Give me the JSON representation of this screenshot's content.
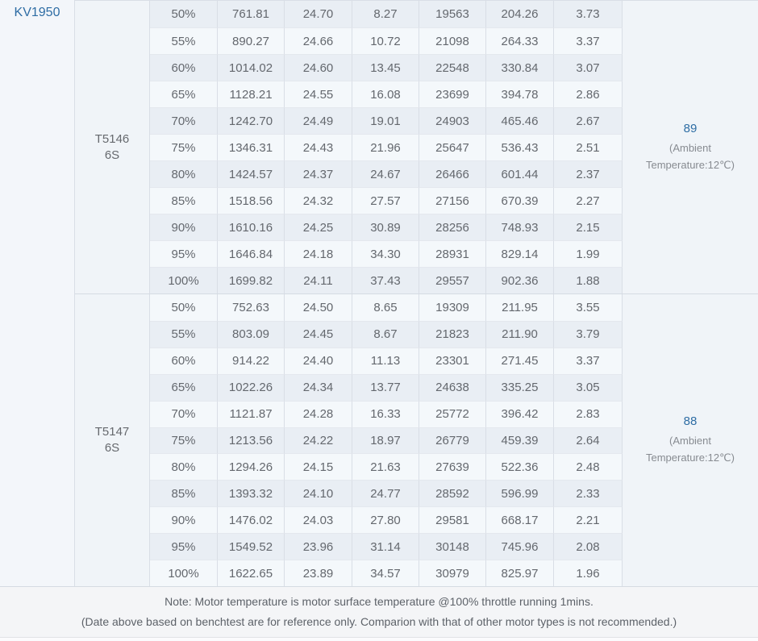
{
  "table": {
    "kv_label": "KV1950",
    "note_line1": "Note: Motor temperature is motor surface temperature @100% throttle running 1mins.",
    "note_line2": "(Date above based on benchtest are for reference only. Comparion with that of other motor types is not recommended.)"
  },
  "colors": {
    "accent_blue": "#2e6da4",
    "row_dark": "#e9eef4",
    "row_light": "#f4f8fb",
    "merged_cell_bg": "#f0f4f8",
    "border": "#d9dee6",
    "data_text": "#64686e"
  },
  "columns": [
    "throttle",
    "thrust_g",
    "voltage_v",
    "current_a",
    "rpm",
    "power_w",
    "efficiency_g_w"
  ],
  "sections": [
    {
      "motor_model": "T5146",
      "motor_battery": "6S",
      "temp_value": "89",
      "temp_note_line1": "(Ambient",
      "temp_note_line2": "Temperature:12℃)",
      "rows": [
        {
          "throttle": "50%",
          "thrust_g": "761.81",
          "voltage_v": "24.70",
          "current_a": "8.27",
          "rpm": "19563",
          "power_w": "204.26",
          "efficiency_g_w": "3.73"
        },
        {
          "throttle": "55%",
          "thrust_g": "890.27",
          "voltage_v": "24.66",
          "current_a": "10.72",
          "rpm": "21098",
          "power_w": "264.33",
          "efficiency_g_w": "3.37"
        },
        {
          "throttle": "60%",
          "thrust_g": "1014.02",
          "voltage_v": "24.60",
          "current_a": "13.45",
          "rpm": "22548",
          "power_w": "330.84",
          "efficiency_g_w": "3.07"
        },
        {
          "throttle": "65%",
          "thrust_g": "1128.21",
          "voltage_v": "24.55",
          "current_a": "16.08",
          "rpm": "23699",
          "power_w": "394.78",
          "efficiency_g_w": "2.86"
        },
        {
          "throttle": "70%",
          "thrust_g": "1242.70",
          "voltage_v": "24.49",
          "current_a": "19.01",
          "rpm": "24903",
          "power_w": "465.46",
          "efficiency_g_w": "2.67"
        },
        {
          "throttle": "75%",
          "thrust_g": "1346.31",
          "voltage_v": "24.43",
          "current_a": "21.96",
          "rpm": "25647",
          "power_w": "536.43",
          "efficiency_g_w": "2.51"
        },
        {
          "throttle": "80%",
          "thrust_g": "1424.57",
          "voltage_v": "24.37",
          "current_a": "24.67",
          "rpm": "26466",
          "power_w": "601.44",
          "efficiency_g_w": "2.37"
        },
        {
          "throttle": "85%",
          "thrust_g": "1518.56",
          "voltage_v": "24.32",
          "current_a": "27.57",
          "rpm": "27156",
          "power_w": "670.39",
          "efficiency_g_w": "2.27"
        },
        {
          "throttle": "90%",
          "thrust_g": "1610.16",
          "voltage_v": "24.25",
          "current_a": "30.89",
          "rpm": "28256",
          "power_w": "748.93",
          "efficiency_g_w": "2.15"
        },
        {
          "throttle": "95%",
          "thrust_g": "1646.84",
          "voltage_v": "24.18",
          "current_a": "34.30",
          "rpm": "28931",
          "power_w": "829.14",
          "efficiency_g_w": "1.99"
        },
        {
          "throttle": "100%",
          "thrust_g": "1699.82",
          "voltage_v": "24.11",
          "current_a": "37.43",
          "rpm": "29557",
          "power_w": "902.36",
          "efficiency_g_w": "1.88"
        }
      ]
    },
    {
      "motor_model": "T5147",
      "motor_battery": "6S",
      "temp_value": "88",
      "temp_note_line1": "(Ambient",
      "temp_note_line2": "Temperature:12℃)",
      "rows": [
        {
          "throttle": "50%",
          "thrust_g": "752.63",
          "voltage_v": "24.50",
          "current_a": "8.65",
          "rpm": "19309",
          "power_w": "211.95",
          "efficiency_g_w": "3.55"
        },
        {
          "throttle": "55%",
          "thrust_g": "803.09",
          "voltage_v": "24.45",
          "current_a": "8.67",
          "rpm": "21823",
          "power_w": "211.90",
          "efficiency_g_w": "3.79"
        },
        {
          "throttle": "60%",
          "thrust_g": "914.22",
          "voltage_v": "24.40",
          "current_a": "11.13",
          "rpm": "23301",
          "power_w": "271.45",
          "efficiency_g_w": "3.37"
        },
        {
          "throttle": "65%",
          "thrust_g": "1022.26",
          "voltage_v": "24.34",
          "current_a": "13.77",
          "rpm": "24638",
          "power_w": "335.25",
          "efficiency_g_w": "3.05"
        },
        {
          "throttle": "70%",
          "thrust_g": "1121.87",
          "voltage_v": "24.28",
          "current_a": "16.33",
          "rpm": "25772",
          "power_w": "396.42",
          "efficiency_g_w": "2.83"
        },
        {
          "throttle": "75%",
          "thrust_g": "1213.56",
          "voltage_v": "24.22",
          "current_a": "18.97",
          "rpm": "26779",
          "power_w": "459.39",
          "efficiency_g_w": "2.64"
        },
        {
          "throttle": "80%",
          "thrust_g": "1294.26",
          "voltage_v": "24.15",
          "current_a": "21.63",
          "rpm": "27639",
          "power_w": "522.36",
          "efficiency_g_w": "2.48"
        },
        {
          "throttle": "85%",
          "thrust_g": "1393.32",
          "voltage_v": "24.10",
          "current_a": "24.77",
          "rpm": "28592",
          "power_w": "596.99",
          "efficiency_g_w": "2.33"
        },
        {
          "throttle": "90%",
          "thrust_g": "1476.02",
          "voltage_v": "24.03",
          "current_a": "27.80",
          "rpm": "29581",
          "power_w": "668.17",
          "efficiency_g_w": "2.21"
        },
        {
          "throttle": "95%",
          "thrust_g": "1549.52",
          "voltage_v": "23.96",
          "current_a": "31.14",
          "rpm": "30148",
          "power_w": "745.96",
          "efficiency_g_w": "2.08"
        },
        {
          "throttle": "100%",
          "thrust_g": "1622.65",
          "voltage_v": "23.89",
          "current_a": "34.57",
          "rpm": "30979",
          "power_w": "825.97",
          "efficiency_g_w": "1.96"
        }
      ]
    }
  ]
}
